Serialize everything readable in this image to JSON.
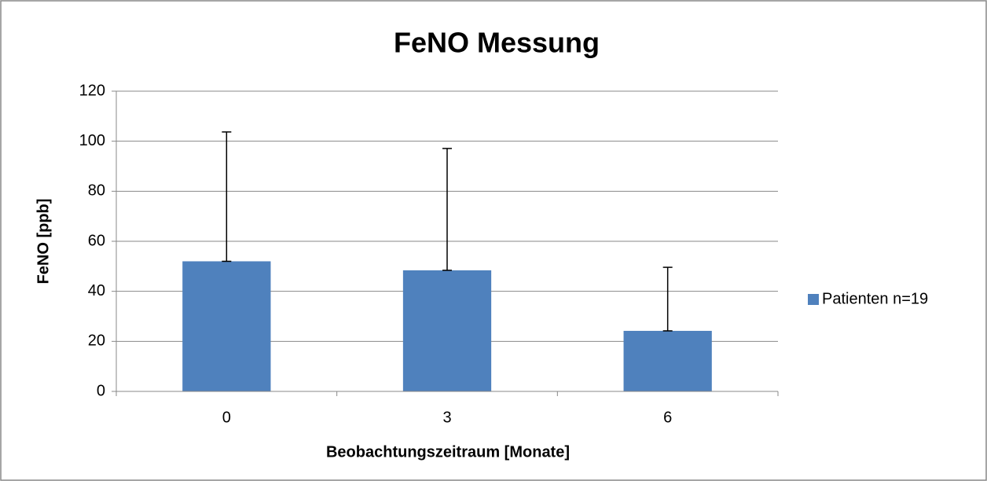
{
  "chart_data": {
    "type": "bar",
    "title": "FeNO Messung",
    "xlabel": "Beobachtungszeitraum [Monate]",
    "ylabel": "FeNO [ppb]",
    "categories": [
      "0",
      "3",
      "6"
    ],
    "series": [
      {
        "name": "Patienten n=19",
        "color": "#4f81bd",
        "values": [
          52,
          48.4,
          24.2
        ],
        "errors": [
          51.7,
          48.7,
          25.4
        ]
      }
    ],
    "ylim": [
      0,
      120
    ],
    "yticks": [
      0,
      20,
      40,
      60,
      80,
      100,
      120
    ],
    "grid": true,
    "legend": "right"
  }
}
